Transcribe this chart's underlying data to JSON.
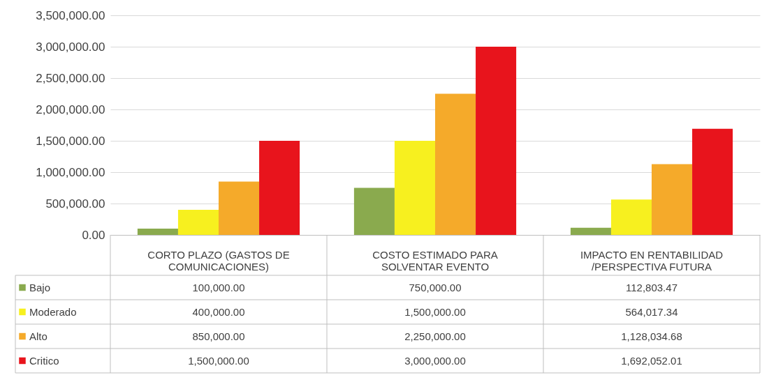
{
  "chart_data": {
    "type": "bar",
    "categories": [
      "CORTO PLAZO (GASTOS DE COMUNICACIONES)",
      "COSTO ESTIMADO  PARA SOLVENTAR EVENTO",
      "IMPACTO EN RENTABILIDAD /PERSPECTIVA FUTURA"
    ],
    "series": [
      {
        "name": "Bajo",
        "color": "#8aaa4e",
        "values": [
          100000.0,
          750000.0,
          112803.47
        ],
        "value_labels": [
          "100,000.00",
          "750,000.00",
          "112,803.47"
        ]
      },
      {
        "name": "Moderado",
        "color": "#f7f01f",
        "values": [
          400000.0,
          1500000.0,
          564017.34
        ],
        "value_labels": [
          "400,000.00",
          "1,500,000.00",
          "564,017.34"
        ]
      },
      {
        "name": "Alto",
        "color": "#f5aa2a",
        "values": [
          850000.0,
          2250000.0,
          1128034.68
        ],
        "value_labels": [
          "850,000.00",
          "2,250,000.00",
          "1,128,034.68"
        ]
      },
      {
        "name": "Critico",
        "color": "#e8141c",
        "values": [
          1500000.0,
          3000000.0,
          1692052.01
        ],
        "value_labels": [
          "1,500,000.00",
          "3,000,000.00",
          "1,692,052.01"
        ]
      }
    ],
    "ylim": [
      0,
      3500000
    ],
    "yticks": [
      {
        "value": 0,
        "label": "0.00"
      },
      {
        "value": 500000,
        "label": "500,000.00"
      },
      {
        "value": 1000000,
        "label": "1,000,000.00"
      },
      {
        "value": 1500000,
        "label": "1,500,000.00"
      },
      {
        "value": 2000000,
        "label": "2,000,000.00"
      },
      {
        "value": 2500000,
        "label": "2,500,000.00"
      },
      {
        "value": 3000000,
        "label": "3,000,000.00"
      },
      {
        "value": 3500000,
        "label": "3,500,000.00"
      }
    ],
    "grid": true,
    "legend": "bottom"
  }
}
